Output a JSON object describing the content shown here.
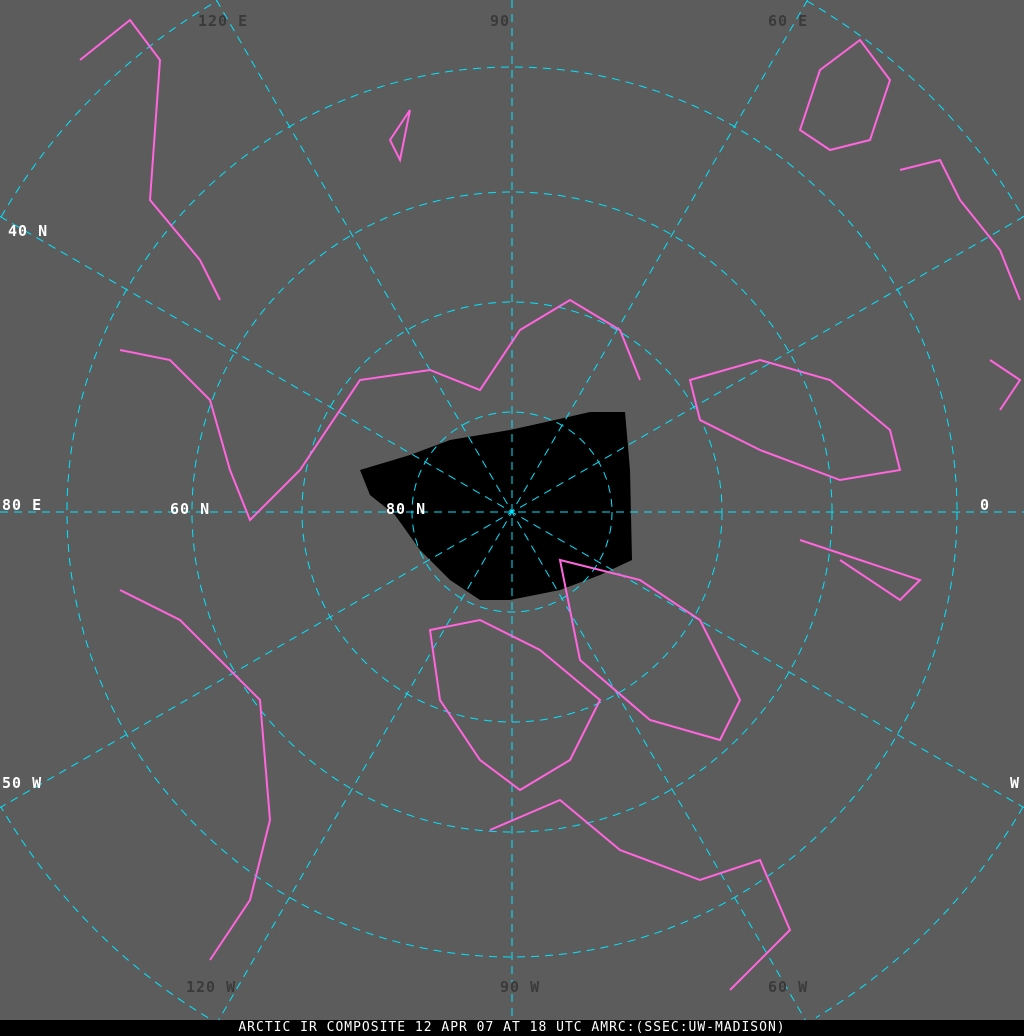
{
  "caption": "ARCTIC IR COMPOSITE 12 APR 07 AT 18 UTC AMRC:(SSEC:UW-MADISON)",
  "colors": {
    "coastline": "#ff66dd",
    "graticule": "#00e5ff",
    "background": "#000000"
  },
  "labels": {
    "lon_120e": "120",
    "lon_120e_dir": "E",
    "lon_90e": "90",
    "lon_60e": "60",
    "lon_60e_dir": "E",
    "lat_40n": "40",
    "lat_40n_dir": "N",
    "lon_80e": "80",
    "lon_80e_dir": "E",
    "lat_60n": "60",
    "lat_60n_dir": "N",
    "lat_80n": "80",
    "lat_80n_dir": "N",
    "lon_0": "0",
    "lon_w_right": "W",
    "lon_50w": "50",
    "lon_50w_dir": "W",
    "lon_120w": "120",
    "lon_120w_dir": "W",
    "lon_90w": "90",
    "lon_90w_dir": "W",
    "lon_60w": "60",
    "lon_60w_dir": "W"
  }
}
